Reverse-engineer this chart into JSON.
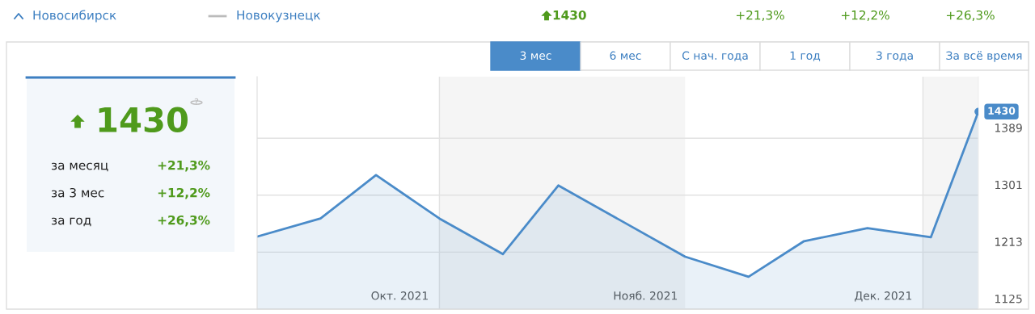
{
  "chart_data": [
    {
      "type": "other",
      "annotations": [
        "Новосибирск",
        "Новокузнецк",
        "1430",
        "+21,3%",
        "+12,2%",
        "+26,3%"
      ]
    },
    {
      "type": "other",
      "title": "1430",
      "annotations": [
        "за месяц",
        "+21,3%",
        "за 3 мес",
        "+12,2%",
        "за год",
        "+26,3%",
        "?"
      ]
    },
    {
      "type": "area",
      "annotations": [
        "3 мес",
        "6 мес",
        "С нач. года",
        "1 год",
        "3 года",
        "За всё время"
      ],
      "x": [
        "2021-09-08",
        "2021-09-16",
        "2021-09-23",
        "2021-10-01",
        "2021-10-09",
        "2021-10-16",
        "2021-10-24",
        "2021-11-01",
        "2021-11-09",
        "2021-11-16",
        "2021-11-24",
        "2021-12-02",
        "2021-12-08"
      ],
      "series": [
        {
          "color": "#4a8bc9",
          "values": [
            1237,
            1265,
            1332,
            1265,
            1210,
            1316,
            1261,
            1206,
            1175,
            1230,
            1250,
            1236,
            1430
          ],
          "value_labels": [
            null,
            null,
            null,
            null,
            null,
            null,
            null,
            null,
            null,
            null,
            null,
            null,
            "1430"
          ]
        }
      ],
      "xlim": [
        "2021-09-08",
        "2021-12-08"
      ],
      "xticks": [
        {
          "value": "2021-09-26",
          "label": "Окт. 2021"
        },
        {
          "value": "2021-10-27",
          "label": "Нояб. 2021"
        },
        {
          "value": "2021-11-26",
          "label": "Дек. 2021"
        }
      ],
      "ylim": [
        1125,
        1484
      ],
      "yticks": [
        1125,
        1213,
        1301,
        1389
      ],
      "grid": "y",
      "bands": [
        {
          "axis": "x",
          "from": "2021-10-01",
          "to": "2021-11-01",
          "color": "#f5f5f5"
        },
        {
          "axis": "x",
          "from": "2021-12-01",
          "to": "2021-12-08",
          "color": "#f5f5f5"
        }
      ]
    }
  ]
}
